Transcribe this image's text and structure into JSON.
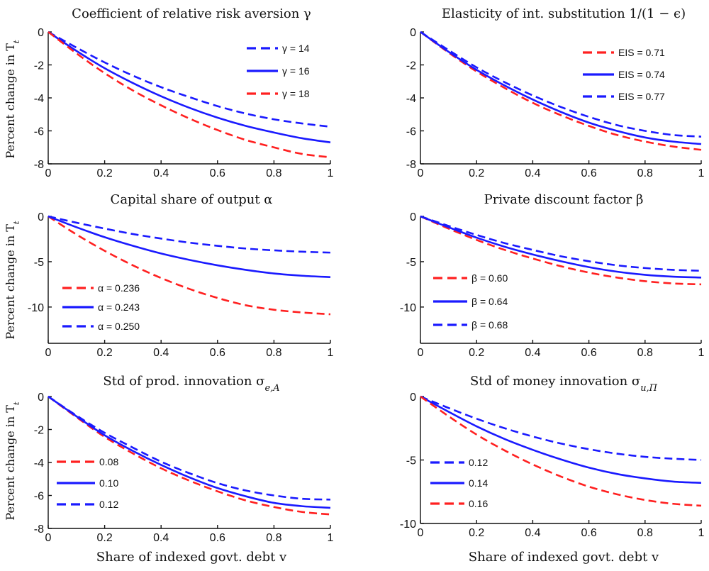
{
  "chart_data": [
    {
      "type": "line",
      "title": "Coefficient of relative risk aversion γ",
      "ylabel": "Percent change in T_t",
      "xlim": [
        0,
        1
      ],
      "ylim": [
        -8,
        0
      ],
      "xticks": [
        "0",
        "0.2",
        "0.4",
        "0.6",
        "0.8",
        "1"
      ],
      "yticks": [
        "0",
        "-2",
        "-4",
        "-6",
        "-8"
      ],
      "legend_position": "top-right",
      "series": [
        {
          "name": "γ = 14",
          "color": "#1a1aff",
          "style": "dashed",
          "x": [
            0,
            0.1,
            0.2,
            0.3,
            0.4,
            0.5,
            0.6,
            0.7,
            0.8,
            0.9,
            1.0
          ],
          "y": [
            0,
            -0.95,
            -1.85,
            -2.65,
            -3.35,
            -3.95,
            -4.5,
            -4.95,
            -5.3,
            -5.55,
            -5.75
          ]
        },
        {
          "name": "γ = 16",
          "color": "#1a1aff",
          "style": "solid",
          "x": [
            0,
            0.1,
            0.2,
            0.3,
            0.4,
            0.5,
            0.6,
            0.7,
            0.8,
            0.9,
            1.0
          ],
          "y": [
            0,
            -1.15,
            -2.2,
            -3.1,
            -3.9,
            -4.6,
            -5.2,
            -5.7,
            -6.1,
            -6.45,
            -6.7
          ]
        },
        {
          "name": "γ = 18",
          "color": "#ff2020",
          "style": "dashed",
          "x": [
            0,
            0.1,
            0.2,
            0.3,
            0.4,
            0.5,
            0.6,
            0.7,
            0.8,
            0.9,
            1.0
          ],
          "y": [
            0,
            -1.3,
            -2.5,
            -3.55,
            -4.45,
            -5.25,
            -5.95,
            -6.55,
            -7.0,
            -7.4,
            -7.6
          ]
        }
      ]
    },
    {
      "type": "line",
      "title": "Elasticity of int. substitution 1/(1 − ϵ)",
      "ylabel": "",
      "xlim": [
        0,
        1
      ],
      "ylim": [
        -8,
        0
      ],
      "xticks": [
        "0",
        "0.2",
        "0.4",
        "0.6",
        "0.8",
        "1"
      ],
      "yticks": [
        "0",
        "-2",
        "-4",
        "-6",
        "-8"
      ],
      "legend_position": "top-right",
      "series": [
        {
          "name": "EIS = 0.71",
          "color": "#ff2020",
          "style": "dashed",
          "x": [
            0,
            0.1,
            0.2,
            0.3,
            0.4,
            0.5,
            0.6,
            0.7,
            0.8,
            0.9,
            1.0
          ],
          "y": [
            0,
            -1.25,
            -2.4,
            -3.4,
            -4.3,
            -5.05,
            -5.7,
            -6.25,
            -6.65,
            -6.95,
            -7.15
          ]
        },
        {
          "name": "EIS = 0.74",
          "color": "#1a1aff",
          "style": "solid",
          "x": [
            0,
            0.1,
            0.2,
            0.3,
            0.4,
            0.5,
            0.6,
            0.7,
            0.8,
            0.9,
            1.0
          ],
          "y": [
            0,
            -1.2,
            -2.3,
            -3.25,
            -4.1,
            -4.85,
            -5.5,
            -6.0,
            -6.4,
            -6.65,
            -6.8
          ]
        },
        {
          "name": "EIS = 0.77",
          "color": "#1a1aff",
          "style": "dashed",
          "x": [
            0,
            0.1,
            0.2,
            0.3,
            0.4,
            0.5,
            0.6,
            0.7,
            0.8,
            0.9,
            1.0
          ],
          "y": [
            0,
            -1.1,
            -2.15,
            -3.05,
            -3.85,
            -4.55,
            -5.15,
            -5.65,
            -6.0,
            -6.25,
            -6.35
          ]
        }
      ]
    },
    {
      "type": "line",
      "title": "Capital share of output α",
      "ylabel": "Percent change in T_t",
      "xlim": [
        0,
        1
      ],
      "ylim": [
        -14,
        0
      ],
      "xticks": [
        "0",
        "0.2",
        "0.4",
        "0.6",
        "0.8",
        "1"
      ],
      "yticks": [
        "0",
        "-5",
        "-10"
      ],
      "legend_position": "bottom-left",
      "series": [
        {
          "name": "α = 0.236",
          "color": "#ff2020",
          "style": "dashed",
          "x": [
            0,
            0.1,
            0.2,
            0.3,
            0.4,
            0.5,
            0.6,
            0.7,
            0.8,
            0.9,
            1.0
          ],
          "y": [
            0,
            -2.0,
            -3.8,
            -5.4,
            -6.8,
            -8.0,
            -9.0,
            -9.8,
            -10.3,
            -10.6,
            -10.8
          ]
        },
        {
          "name": "α = 0.243",
          "color": "#1a1aff",
          "style": "solid",
          "x": [
            0,
            0.1,
            0.2,
            0.3,
            0.4,
            0.5,
            0.6,
            0.7,
            0.8,
            0.9,
            1.0
          ],
          "y": [
            0,
            -1.2,
            -2.3,
            -3.25,
            -4.1,
            -4.8,
            -5.4,
            -5.9,
            -6.3,
            -6.55,
            -6.7
          ]
        },
        {
          "name": "α = 0.250",
          "color": "#1a1aff",
          "style": "dashed",
          "x": [
            0,
            0.1,
            0.2,
            0.3,
            0.4,
            0.5,
            0.6,
            0.7,
            0.8,
            0.9,
            1.0
          ],
          "y": [
            0,
            -0.7,
            -1.35,
            -1.95,
            -2.45,
            -2.9,
            -3.25,
            -3.55,
            -3.75,
            -3.9,
            -4.0
          ]
        }
      ]
    },
    {
      "type": "line",
      "title": "Private discount factor β",
      "ylabel": "",
      "xlim": [
        0,
        1
      ],
      "ylim": [
        -14,
        0
      ],
      "xticks": [
        "0",
        "0.2",
        "0.4",
        "0.6",
        "0.8",
        "1"
      ],
      "yticks": [
        "0",
        "-5",
        "-10"
      ],
      "legend_position": "bottom-left",
      "series": [
        {
          "name": "β = 0.60",
          "color": "#ff2020",
          "style": "dashed",
          "x": [
            0,
            0.1,
            0.2,
            0.3,
            0.4,
            0.5,
            0.6,
            0.7,
            0.8,
            0.9,
            1.0
          ],
          "y": [
            0,
            -1.35,
            -2.6,
            -3.7,
            -4.65,
            -5.5,
            -6.2,
            -6.75,
            -7.15,
            -7.4,
            -7.5
          ]
        },
        {
          "name": "β = 0.64",
          "color": "#1a1aff",
          "style": "solid",
          "x": [
            0,
            0.1,
            0.2,
            0.3,
            0.4,
            0.5,
            0.6,
            0.7,
            0.8,
            0.9,
            1.0
          ],
          "y": [
            0,
            -1.2,
            -2.35,
            -3.35,
            -4.2,
            -4.95,
            -5.6,
            -6.1,
            -6.45,
            -6.65,
            -6.75
          ]
        },
        {
          "name": "β = 0.68",
          "color": "#1a1aff",
          "style": "dashed",
          "x": [
            0,
            0.1,
            0.2,
            0.3,
            0.4,
            0.5,
            0.6,
            0.7,
            0.8,
            0.9,
            1.0
          ],
          "y": [
            0,
            -1.05,
            -2.05,
            -2.95,
            -3.7,
            -4.4,
            -4.95,
            -5.4,
            -5.7,
            -5.9,
            -6.0
          ]
        }
      ]
    },
    {
      "type": "line",
      "title": "Std of prod. innovation σ_{e,A}",
      "ylabel": "Percent change in T_t",
      "xlim": [
        0,
        1
      ],
      "ylim": [
        -8,
        0
      ],
      "xticks": [
        "0",
        "0.2",
        "0.4",
        "0.6",
        "0.8",
        "1"
      ],
      "yticks": [
        "0",
        "-2",
        "-4",
        "-6",
        "-8"
      ],
      "legend_position": "bottom-left",
      "series": [
        {
          "name": "0.08",
          "color": "#ff2020",
          "style": "dashed",
          "x": [
            0,
            0.1,
            0.2,
            0.3,
            0.4,
            0.5,
            0.6,
            0.7,
            0.8,
            0.9,
            1.0
          ],
          "y": [
            0,
            -1.25,
            -2.45,
            -3.45,
            -4.35,
            -5.1,
            -5.75,
            -6.3,
            -6.7,
            -7.0,
            -7.15
          ]
        },
        {
          "name": "0.10",
          "color": "#1a1aff",
          "style": "solid",
          "x": [
            0,
            0.1,
            0.2,
            0.3,
            0.4,
            0.5,
            0.6,
            0.7,
            0.8,
            0.9,
            1.0
          ],
          "y": [
            0,
            -1.2,
            -2.35,
            -3.3,
            -4.15,
            -4.9,
            -5.55,
            -6.05,
            -6.45,
            -6.65,
            -6.75
          ]
        },
        {
          "name": "0.12",
          "color": "#1a1aff",
          "style": "dashed",
          "x": [
            0,
            0.1,
            0.2,
            0.3,
            0.4,
            0.5,
            0.6,
            0.7,
            0.8,
            0.9,
            1.0
          ],
          "y": [
            0,
            -1.15,
            -2.2,
            -3.1,
            -3.95,
            -4.65,
            -5.25,
            -5.7,
            -6.0,
            -6.2,
            -6.25
          ]
        }
      ]
    },
    {
      "type": "line",
      "title": "Std of money innovation σ_{u,Π}",
      "ylabel": "",
      "xlim": [
        0,
        1
      ],
      "ylim": [
        -10,
        0
      ],
      "xticks": [
        "0",
        "0.2",
        "0.4",
        "0.6",
        "0.8",
        "1"
      ],
      "yticks": [
        "0",
        "-5",
        "-10"
      ],
      "legend_position": "bottom-left",
      "series": [
        {
          "name": "0.12",
          "color": "#1a1aff",
          "style": "dashed",
          "x": [
            0,
            0.1,
            0.2,
            0.3,
            0.4,
            0.5,
            0.6,
            0.7,
            0.8,
            0.9,
            1.0
          ],
          "y": [
            0,
            -0.9,
            -1.75,
            -2.5,
            -3.15,
            -3.7,
            -4.15,
            -4.5,
            -4.75,
            -4.9,
            -5.0
          ]
        },
        {
          "name": "0.14",
          "color": "#1a1aff",
          "style": "solid",
          "x": [
            0,
            0.1,
            0.2,
            0.3,
            0.4,
            0.5,
            0.6,
            0.7,
            0.8,
            0.9,
            1.0
          ],
          "y": [
            0,
            -1.2,
            -2.35,
            -3.35,
            -4.2,
            -4.95,
            -5.6,
            -6.1,
            -6.45,
            -6.7,
            -6.8
          ]
        },
        {
          "name": "0.16",
          "color": "#ff2020",
          "style": "dashed",
          "x": [
            0,
            0.1,
            0.2,
            0.3,
            0.4,
            0.5,
            0.6,
            0.7,
            0.8,
            0.9,
            1.0
          ],
          "y": [
            0,
            -1.55,
            -3.0,
            -4.25,
            -5.35,
            -6.3,
            -7.1,
            -7.7,
            -8.15,
            -8.45,
            -8.6
          ]
        }
      ]
    }
  ],
  "xlabels_below": [
    "Share of indexed govt. debt v",
    "Share of indexed govt. debt v"
  ]
}
